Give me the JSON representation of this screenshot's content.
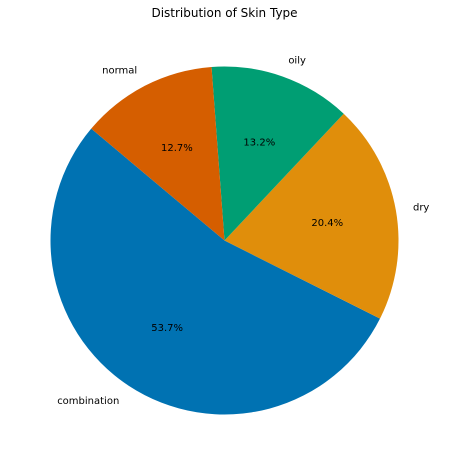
{
  "chart_data": {
    "type": "pie",
    "title": "Distribution of Skin Type",
    "slices": [
      {
        "label": "combination",
        "value": 53.7,
        "pct_label": "53.7%",
        "color": "#0072b2"
      },
      {
        "label": "dry",
        "value": 20.4,
        "pct_label": "20.4%",
        "color": "#e08e0b"
      },
      {
        "label": "oily",
        "value": 13.2,
        "pct_label": "13.2%",
        "color": "#009e73"
      },
      {
        "label": "normal",
        "value": 12.7,
        "pct_label": "12.7%",
        "color": "#d55e00"
      }
    ],
    "start_angle_deg": 140,
    "direction": "counterclockwise"
  }
}
